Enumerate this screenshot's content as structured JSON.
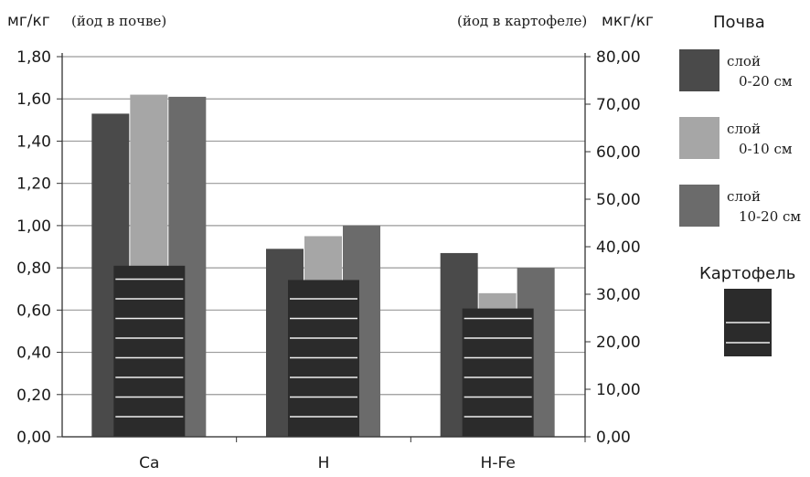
{
  "chart_data": {
    "type": "bar",
    "categories": [
      "Ca",
      "H",
      "H-Fe"
    ],
    "left_axis": {
      "unit": "мг/кг",
      "note": "(йод в почве)",
      "ylim": [
        0,
        1.8
      ],
      "ticks": [
        "0,00",
        "0,20",
        "0,40",
        "0,60",
        "0,80",
        "1,00",
        "1,20",
        "1,40",
        "1,60",
        "1,80"
      ]
    },
    "right_axis": {
      "unit": "мкг/кг",
      "note": "(йод в картофеле)",
      "ylim": [
        0,
        80
      ],
      "ticks": [
        "0,00",
        "10,00",
        "20,00",
        "30,00",
        "40,00",
        "50,00",
        "60,00",
        "70,00",
        "80,00"
      ]
    },
    "grid": true,
    "legend_position": "right",
    "soil_legend_title": "Почва",
    "potato_legend_title": "Картофель",
    "series": [
      {
        "name_line1": "слой",
        "name_line2": "0-20 см",
        "axis": "left",
        "color": "#4a4a4a",
        "values": [
          1.53,
          0.89,
          0.87
        ]
      },
      {
        "name_line1": "слой",
        "name_line2": "0-10 см",
        "axis": "left",
        "color": "#a6a6a6",
        "values": [
          1.62,
          0.95,
          0.68
        ]
      },
      {
        "name_line1": "слой",
        "name_line2": "10-20 см",
        "axis": "left",
        "color": "#6b6b6b",
        "values": [
          1.61,
          1.0,
          0.8
        ]
      }
    ],
    "potato": {
      "axis": "right",
      "color": "#2b2b2b",
      "values": [
        36,
        33,
        27
      ]
    }
  }
}
